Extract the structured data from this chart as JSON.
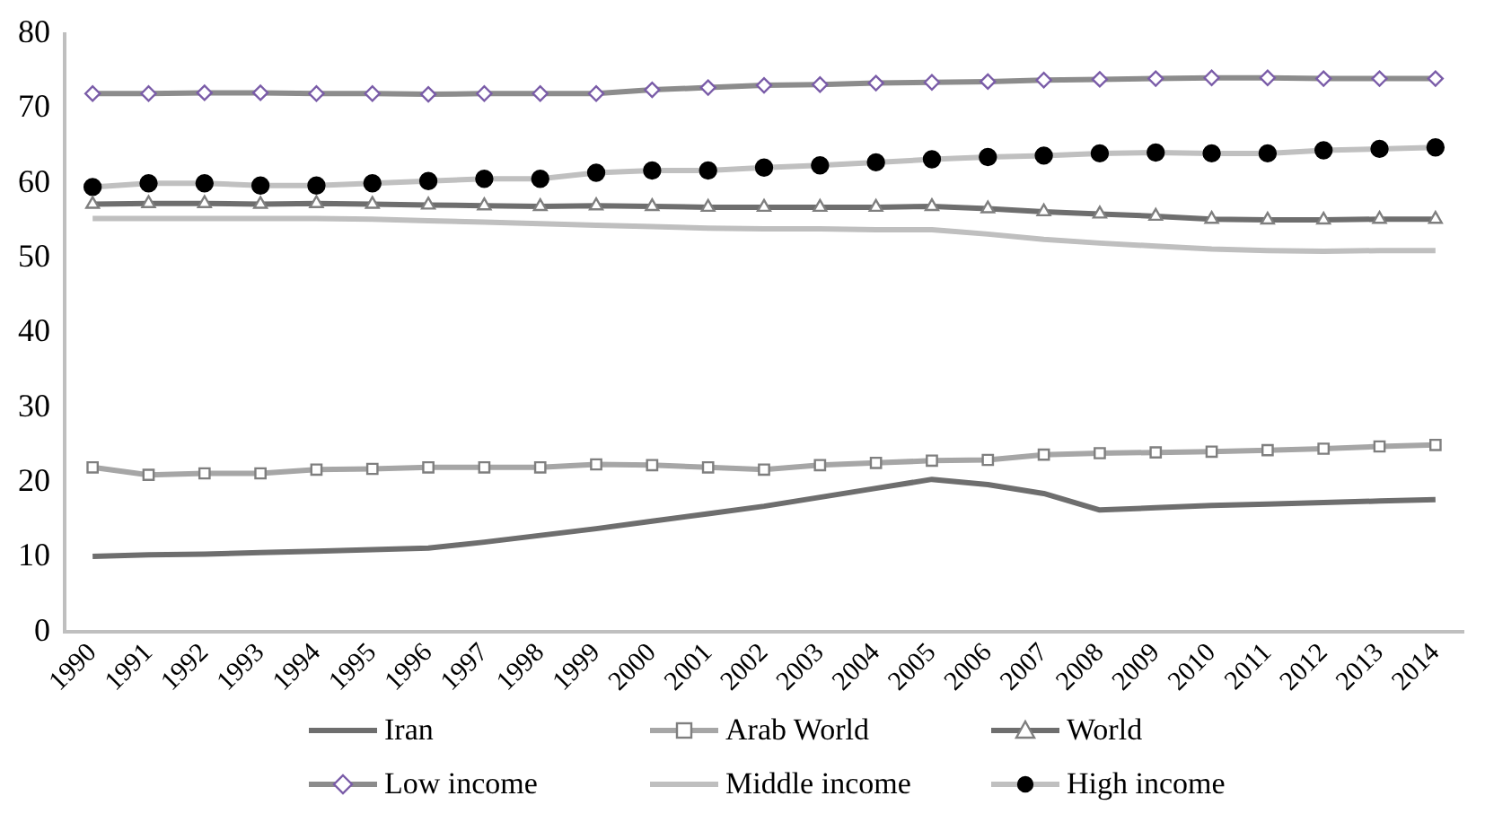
{
  "chart_data": {
    "type": "line",
    "categories": [
      "1990",
      "1991",
      "1992",
      "1993",
      "1994",
      "1995",
      "1996",
      "1997",
      "1998",
      "1999",
      "2000",
      "2001",
      "2002",
      "2003",
      "2004",
      "2005",
      "2006",
      "2007",
      "2008",
      "2009",
      "2010",
      "2011",
      "2012",
      "2013",
      "2014"
    ],
    "series": [
      {
        "name": "Iran",
        "color": "#6e6e6e",
        "marker": "none",
        "values": [
          10.1,
          10.3,
          10.4,
          10.6,
          10.8,
          11,
          11.2,
          12,
          12.9,
          13.8,
          14.8,
          15.8,
          16.8,
          18,
          19.2,
          20.4,
          19.7,
          18.5,
          16.3,
          16.6,
          16.9,
          17.1,
          17.3,
          17.5,
          17.7
        ]
      },
      {
        "name": "Arab World",
        "color": "#a6a6a6",
        "marker": "square",
        "values": [
          22,
          21,
          21.2,
          21.2,
          21.7,
          21.8,
          22,
          22,
          22,
          22.4,
          22.3,
          22,
          21.7,
          22.3,
          22.6,
          22.9,
          23,
          23.7,
          23.9,
          24,
          24.1,
          24.3,
          24.5,
          24.8,
          25
        ]
      },
      {
        "name": "World",
        "color": "#6e6e6e",
        "marker": "triangle",
        "values": [
          57.2,
          57.3,
          57.3,
          57.2,
          57.3,
          57.2,
          57.1,
          57,
          56.9,
          57,
          56.9,
          56.8,
          56.8,
          56.8,
          56.8,
          56.9,
          56.6,
          56.2,
          55.9,
          55.6,
          55.2,
          55.1,
          55.1,
          55.2,
          55.2
        ]
      },
      {
        "name": "Low income",
        "color": "#8c8c8c",
        "marker": "diamond",
        "values": [
          72,
          72,
          72.1,
          72.1,
          72,
          72,
          71.9,
          72,
          72,
          72,
          72.5,
          72.8,
          73.1,
          73.2,
          73.4,
          73.5,
          73.6,
          73.8,
          73.9,
          74,
          74.1,
          74.1,
          74,
          74,
          74
        ]
      },
      {
        "name": "Middle income",
        "color": "#bfbfbf",
        "marker": "none",
        "values": [
          55.3,
          55.3,
          55.3,
          55.3,
          55.3,
          55.2,
          55,
          54.8,
          54.6,
          54.4,
          54.2,
          54,
          53.9,
          53.9,
          53.8,
          53.8,
          53.2,
          52.5,
          52,
          51.6,
          51.2,
          51,
          50.9,
          51,
          51
        ]
      },
      {
        "name": "High income",
        "color": "#c0c0c0",
        "marker": "circle",
        "values": [
          59.5,
          60,
          60,
          59.7,
          59.7,
          60,
          60.3,
          60.6,
          60.6,
          61.4,
          61.7,
          61.7,
          62.1,
          62.4,
          62.8,
          63.2,
          63.5,
          63.7,
          64,
          64.1,
          64,
          64,
          64.4,
          64.6,
          64.8
        ]
      }
    ],
    "ylim": [
      0,
      80
    ],
    "yticks": [
      0,
      10,
      20,
      30,
      40,
      50,
      60,
      70,
      80
    ],
    "grid": false,
    "legend": "bottom"
  }
}
